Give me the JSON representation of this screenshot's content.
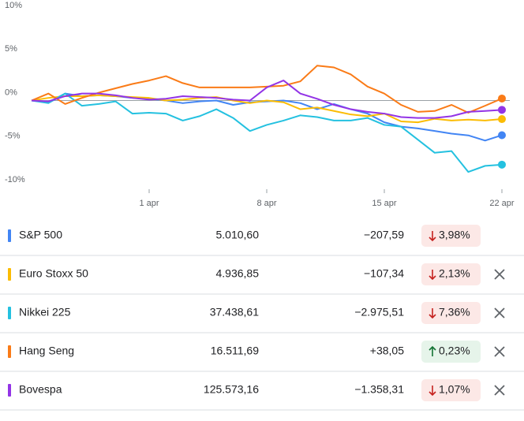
{
  "chart_data": {
    "type": "line",
    "categories": [
      null,
      null,
      null,
      null,
      null,
      null,
      null,
      "1 apr",
      null,
      null,
      null,
      null,
      null,
      null,
      "8 apr",
      null,
      null,
      null,
      null,
      null,
      null,
      "15 apr",
      null,
      null,
      null,
      null,
      null,
      null,
      "22 apr"
    ],
    "ylim": [
      -10,
      10
    ],
    "yticks": [
      {
        "value": 10,
        "label": "10%"
      },
      {
        "value": 5,
        "label": "5%"
      },
      {
        "value": 0,
        "label": "0%"
      },
      {
        "value": -5,
        "label": "-5%"
      },
      {
        "value": -10,
        "label": "-10%"
      }
    ],
    "series": [
      {
        "name": "S&P 500",
        "color": "#4285f4",
        "values": [
          0,
          -0.2,
          0.8,
          0.5,
          0.6,
          0.5,
          0.3,
          0.2,
          0,
          -0.3,
          -0.1,
          0,
          -0.5,
          -0.2,
          -0.1,
          0,
          -0.3,
          -1,
          -0.4,
          -1,
          -1.5,
          -2.5,
          -3,
          -3.2,
          -3.5,
          -3.8,
          -4,
          -4.6,
          -3.98
        ]
      },
      {
        "name": "Euro Stoxx 50",
        "color": "#fbbc04",
        "values": [
          0,
          0.3,
          0.5,
          0.5,
          0.6,
          0.5,
          0.4,
          0.3,
          0,
          0.1,
          0.3,
          0.4,
          0,
          -0.3,
          0,
          -0.2,
          -1,
          -0.8,
          -1.2,
          -1.6,
          -1.8,
          -1.5,
          -2.4,
          -2.5,
          -2.1,
          -2.3,
          -2.2,
          -2.3,
          -2.13
        ]
      },
      {
        "name": "Nikkei 225",
        "color": "#24c1e0",
        "values": [
          0,
          -0.3,
          0.8,
          -0.6,
          -0.4,
          -0.1,
          -1.5,
          -1.4,
          -1.5,
          -2.3,
          -1.8,
          -1,
          -2,
          -3.5,
          -2.8,
          -2.3,
          -1.7,
          -1.9,
          -2.3,
          -2.3,
          -2,
          -2.8,
          -3,
          -4.5,
          -6,
          -5.8,
          -8.2,
          -7.5,
          -7.36
        ]
      },
      {
        "name": "Hang Seng",
        "color": "#fa7b17",
        "values": [
          0,
          0.8,
          -0.4,
          0.3,
          0.9,
          1.4,
          1.9,
          2.3,
          2.8,
          2.0,
          1.5,
          1.5,
          1.5,
          1.5,
          1.6,
          1.7,
          2.2,
          4.0,
          3.8,
          3.0,
          1.6,
          0.8,
          -0.5,
          -1.3,
          -1.2,
          -0.5,
          -1.4,
          -0.6,
          0.23
        ]
      },
      {
        "name": "Bovespa",
        "color": "#9334e6",
        "values": [
          0,
          -0.1,
          0.5,
          0.8,
          0.8,
          0.6,
          0.3,
          0.1,
          0.2,
          0.5,
          0.4,
          0.3,
          0.1,
          0,
          1.5,
          2.3,
          0.8,
          0.2,
          -0.5,
          -1,
          -1.3,
          -1.5,
          -1.9,
          -2,
          -2,
          -1.8,
          -1.3,
          -1.2,
          -1.07
        ]
      }
    ]
  },
  "table": {
    "rows": [
      {
        "price": "5.010,60",
        "change": "−207,59",
        "percent": "3,98%",
        "trend": "down",
        "removable": false
      },
      {
        "price": "4.936,85",
        "change": "−107,34",
        "percent": "2,13%",
        "trend": "down",
        "removable": true
      },
      {
        "price": "37.438,61",
        "change": "−2.975,51",
        "percent": "7,36%",
        "trend": "down",
        "removable": true
      },
      {
        "price": "16.511,69",
        "change": "+38,05",
        "percent": "0,23%",
        "trend": "up",
        "removable": true
      },
      {
        "price": "125.573,16",
        "change": "−1.358,31",
        "percent": "1,07%",
        "trend": "down",
        "removable": true
      }
    ]
  }
}
